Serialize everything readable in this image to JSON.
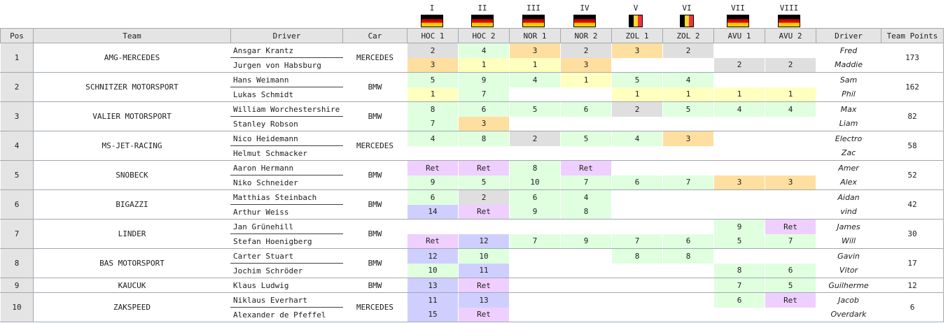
{
  "rounds": [
    {
      "numeral": "I",
      "code": "HOC 1",
      "flag": "de"
    },
    {
      "numeral": "II",
      "code": "HOC 2",
      "flag": "de"
    },
    {
      "numeral": "III",
      "code": "NOR 1",
      "flag": "de"
    },
    {
      "numeral": "IV",
      "code": "NOR 2",
      "flag": "de"
    },
    {
      "numeral": "V",
      "code": "ZOL 1",
      "flag": "be"
    },
    {
      "numeral": "VI",
      "code": "ZOL 2",
      "flag": "be"
    },
    {
      "numeral": "VII",
      "code": "AVU 1",
      "flag": "de"
    },
    {
      "numeral": "VIII",
      "code": "AVU 2",
      "flag": "de"
    }
  ],
  "headers": {
    "pos": "Pos",
    "team": "Team",
    "driver": "Driver",
    "car": "Car",
    "driver2": "Driver",
    "points": "Team Points"
  },
  "colors": {
    "gold": "#ffffbf",
    "silver": "#dfdfdf",
    "bronze": "#ffdf9f",
    "points": "#dfffdf",
    "non_points": "#cfcfff",
    "retired": "#efcfff"
  },
  "teams": [
    {
      "pos": "1",
      "team": "AMG-MERCEDES",
      "car": "MERCEDES",
      "points": "173",
      "drivers": [
        {
          "name": "Ansgar Krantz",
          "nick": "Fred",
          "results": [
            "2",
            "4",
            "3",
            "2",
            "3",
            "2",
            "",
            ""
          ]
        },
        {
          "name": "Jurgen von Habsburg",
          "nick": "Maddie",
          "results": [
            "3",
            "1",
            "1",
            "3",
            "",
            "",
            "2",
            "2"
          ]
        }
      ]
    },
    {
      "pos": "2",
      "team": "SCHNITZER MOTORSPORT",
      "car": "BMW",
      "points": "162",
      "drivers": [
        {
          "name": "Hans Weimann",
          "nick": "Sam",
          "results": [
            "5",
            "9",
            "4",
            "1",
            "5",
            "4",
            "",
            ""
          ]
        },
        {
          "name": "Lukas Schmidt",
          "nick": "Phil",
          "results": [
            "1",
            "7",
            "",
            "",
            "1",
            "1",
            "1",
            "1"
          ]
        }
      ]
    },
    {
      "pos": "3",
      "team": "VALIER MOTORSPORT",
      "car": "BMW",
      "points": "82",
      "drivers": [
        {
          "name": "William Worchestershire",
          "nick": "Max",
          "results": [
            "8",
            "6",
            "5",
            "6",
            "2",
            "5",
            "4",
            "4"
          ]
        },
        {
          "name": "Stanley Robson",
          "nick": "Liam",
          "results": [
            "7",
            "3",
            "",
            "",
            "",
            "",
            "",
            ""
          ]
        }
      ]
    },
    {
      "pos": "4",
      "team": "MS-JET-RACING",
      "car": "MERCEDES",
      "points": "58",
      "drivers": [
        {
          "name": "Nico Heidemann",
          "nick": "Electro",
          "results": [
            "4",
            "8",
            "2",
            "5",
            "4",
            "3",
            "",
            ""
          ]
        },
        {
          "name": "Helmut Schmacker",
          "nick": "Zac",
          "results": [
            "",
            "",
            "",
            "",
            "",
            "",
            "",
            ""
          ]
        }
      ]
    },
    {
      "pos": "5",
      "team": "SNOBECK",
      "car": "BMW",
      "points": "52",
      "drivers": [
        {
          "name": "Aaron Hermann",
          "nick": "Amer",
          "results": [
            "Ret",
            "Ret",
            "8",
            "Ret",
            "",
            "",
            "",
            ""
          ]
        },
        {
          "name": "Niko Schneider",
          "nick": "Alex",
          "results": [
            "9",
            "5",
            "10",
            "7",
            "6",
            "7",
            "3",
            "3"
          ]
        }
      ]
    },
    {
      "pos": "6",
      "team": "BIGAZZI",
      "car": "BMW",
      "points": "42",
      "drivers": [
        {
          "name": "Matthias Steinbach",
          "nick": "Aidan",
          "results": [
            "6",
            "2",
            "6",
            "4",
            "",
            "",
            "",
            ""
          ]
        },
        {
          "name": "Arthur Weiss",
          "nick": "vind",
          "results": [
            "14",
            "Ret",
            "9",
            "8",
            "",
            "",
            "",
            ""
          ]
        }
      ]
    },
    {
      "pos": "7",
      "team": "LINDER",
      "car": "BMW",
      "points": "30",
      "drivers": [
        {
          "name": "Jan Grünehill",
          "nick": "James",
          "results": [
            "",
            "",
            "",
            "",
            "",
            "",
            "9",
            "Ret"
          ]
        },
        {
          "name": "Stefan Hoenigberg",
          "nick": "Will",
          "results": [
            "Ret",
            "12",
            "7",
            "9",
            "7",
            "6",
            "5",
            "7"
          ]
        }
      ]
    },
    {
      "pos": "8",
      "team": "BAS MOTORSPORT",
      "car": "BMW",
      "points": "17",
      "drivers": [
        {
          "name": "Carter Stuart",
          "nick": "Gavin",
          "results": [
            "12",
            "10",
            "",
            "",
            "8",
            "8",
            "",
            ""
          ]
        },
        {
          "name": "Jochim Schröder",
          "nick": "Vitor",
          "results": [
            "10",
            "11",
            "",
            "",
            "",
            "",
            "8",
            "6"
          ]
        }
      ]
    },
    {
      "pos": "9",
      "team": "KAUCUK",
      "car": "BMW",
      "points": "12",
      "drivers": [
        {
          "name": "Klaus Ludwig",
          "nick": "Guilherme",
          "results": [
            "13",
            "Ret",
            "",
            "",
            "",
            "",
            "7",
            "5"
          ]
        }
      ]
    },
    {
      "pos": "10",
      "team": "ZAKSPEED",
      "car": "MERCEDES",
      "points": "6",
      "drivers": [
        {
          "name": "Niklaus Everhart",
          "nick": "Jacob",
          "results": [
            "11",
            "13",
            "",
            "",
            "",
            "",
            "6",
            "Ret"
          ]
        },
        {
          "name": "Alexander de Pfeffel",
          "nick": "Overdark",
          "results": [
            "15",
            "Ret",
            "",
            "",
            "",
            "",
            "",
            ""
          ]
        }
      ]
    }
  ]
}
